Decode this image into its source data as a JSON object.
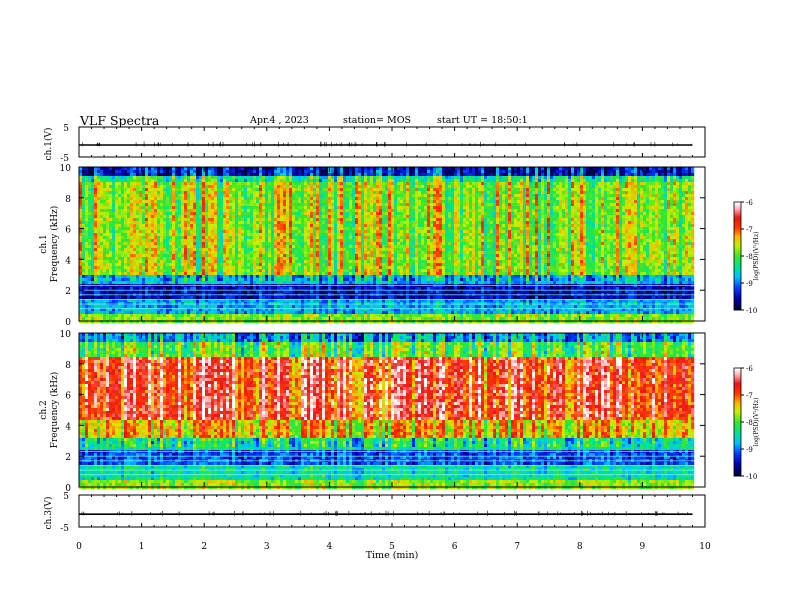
{
  "header": {
    "title": "VLF Spectra",
    "date": "Apr.4 , 2023",
    "station": "station= MOS",
    "start": "start UT = 18:50:1"
  },
  "chart_data": [
    {
      "type": "line",
      "id": "ch1-waveform",
      "ylabel": "ch.1(V)",
      "ylim": [
        -5,
        5
      ],
      "yticks": [
        "5",
        "-5"
      ],
      "xlim": [
        0,
        10
      ],
      "series": [
        {
          "values": [
            [
              0,
              -1.0
            ],
            [
              9.8,
              -1.0
            ]
          ]
        }
      ]
    },
    {
      "type": "heatmap",
      "id": "ch1-spectrogram",
      "ylabel": "ch.1 Frequency (kHz)",
      "ylim": [
        0,
        10
      ],
      "yticks": [
        "0",
        "2",
        "4",
        "6",
        "8",
        "10"
      ],
      "xlim": [
        0,
        9.83
      ],
      "colorbar": {
        "label": "log(PSD)(V²/Hz)",
        "range": [
          -10,
          -6
        ],
        "ticks": [
          "-6",
          "-7",
          "-8",
          "-9",
          "-10"
        ]
      }
    },
    {
      "type": "heatmap",
      "id": "ch2-spectrogram",
      "ylabel": "ch.2 Frequency (kHz)",
      "ylim": [
        0,
        10
      ],
      "yticks": [
        "0",
        "2",
        "4",
        "6",
        "8",
        "10"
      ],
      "xlim": [
        0,
        9.83
      ],
      "colorbar": {
        "label": "log(PSD)(V²/Hz)",
        "range": [
          -10,
          -6
        ],
        "ticks": [
          "-6",
          "-7",
          "-8",
          "-9",
          "-10"
        ]
      }
    },
    {
      "type": "line",
      "id": "ch3-waveform",
      "ylabel": "ch.3(V)",
      "ylim": [
        -5,
        5
      ],
      "yticks": [
        "5",
        "-5"
      ],
      "xlim": [
        0,
        10
      ],
      "series": [
        {
          "values": [
            [
              0,
              -1.0
            ],
            [
              9.8,
              -1.0
            ]
          ]
        }
      ]
    }
  ],
  "xaxis": {
    "label": "Time (min)",
    "ticks": [
      "0",
      "1",
      "2",
      "3",
      "4",
      "5",
      "6",
      "7",
      "8",
      "9",
      "10"
    ]
  }
}
